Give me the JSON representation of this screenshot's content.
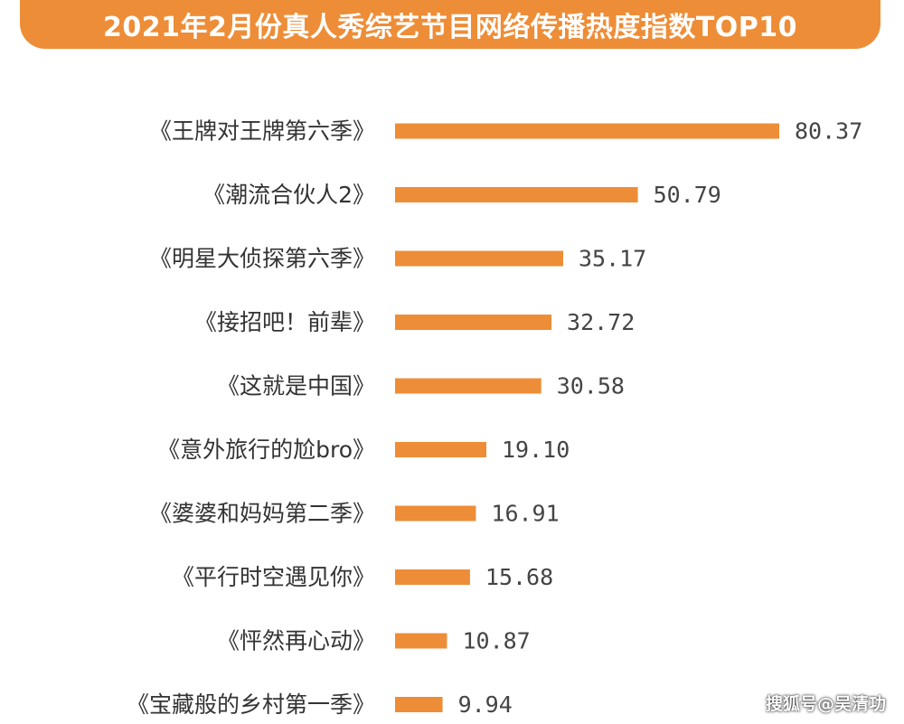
{
  "title": "2021年2月份真人秀综艺节目网络传播热度指数TOP10",
  "watermark": "搜狐号@吴清功",
  "colors": {
    "accent": "#ee8d37",
    "bar": "#ee8d37",
    "text": "#333333"
  },
  "chart_data": {
    "type": "bar",
    "orientation": "horizontal",
    "title": "2021年2月份真人秀综艺节目网络传播热度指数TOP10",
    "categories": [
      "《王牌对王牌第六季》",
      "《潮流合伙人2》",
      "《明星大侦探第六季》",
      "《接招吧！前辈》",
      "《这就是中国》",
      "《意外旅行的尬bro》",
      "《婆婆和妈妈第二季》",
      "《平行时空遇见你》",
      "《怦然再心动》",
      "《宝藏般的乡村第一季》"
    ],
    "values": [
      80.37,
      50.79,
      35.17,
      32.72,
      30.58,
      19.1,
      16.91,
      15.68,
      10.87,
      9.94
    ],
    "value_labels": [
      "80.37",
      "50.79",
      "35.17",
      "32.72",
      "30.58",
      "19.10",
      "16.91",
      "15.68",
      "10.87",
      "9.94"
    ],
    "xlabel": "",
    "ylabel": "",
    "xlim": [
      0,
      80.37
    ],
    "grid": false,
    "legend": "none"
  }
}
